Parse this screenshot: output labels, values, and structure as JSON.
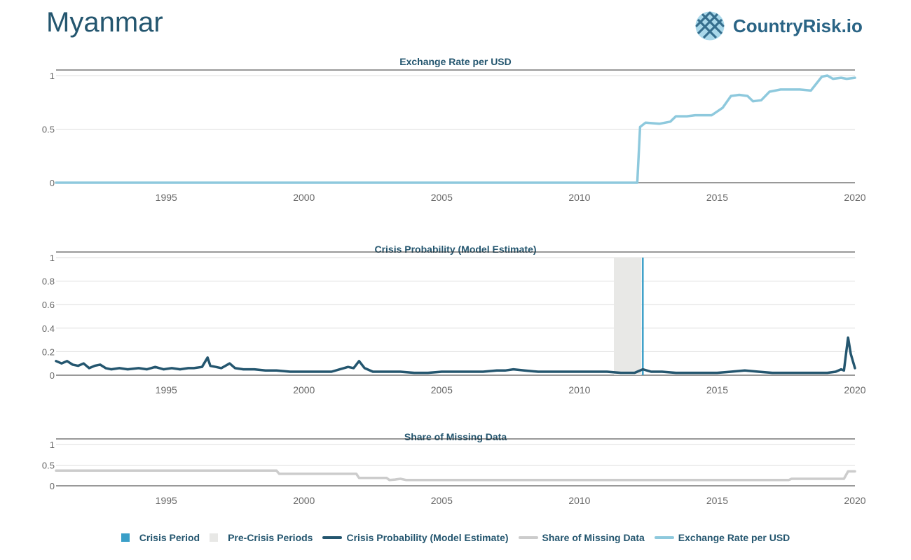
{
  "header": {
    "country": "Myanmar",
    "logo_text": "CountryRisk.io"
  },
  "colors": {
    "crisis": "#3a9fc8",
    "precrisis": "#e8e8e6",
    "probability": "#24566f",
    "missing": "#cccccc",
    "exchange": "#8ec9dd",
    "title": "#24566f",
    "axis": "#666666"
  },
  "legend": {
    "crisis": "Crisis Period",
    "precrisis": "Pre-Crisis Periods",
    "probability": "Crisis Probability (Model Estimate)",
    "missing": "Share of Missing Data",
    "exchange": "Exchange Rate per USD"
  },
  "chart_data": [
    {
      "type": "line",
      "title": "Exchange Rate per USD",
      "xlim": [
        1991,
        2020
      ],
      "xticks": [
        "1995",
        "2000",
        "2005",
        "2010",
        "2015",
        "2020"
      ],
      "ylim": [
        0,
        1
      ],
      "yticks": [
        "0",
        "0.5",
        "1"
      ],
      "series": [
        {
          "name": "Exchange Rate per USD",
          "x": [
            1991,
            2012.1,
            2012.2,
            2012.4,
            2012.9,
            2013.3,
            2013.5,
            2013.9,
            2014.2,
            2014.8,
            2015.2,
            2015.5,
            2015.8,
            2016.1,
            2016.3,
            2016.6,
            2016.9,
            2017.3,
            2018.0,
            2018.4,
            2018.8,
            2019.0,
            2019.2,
            2019.5,
            2019.7,
            2020
          ],
          "y": [
            0.0,
            0.0,
            0.52,
            0.56,
            0.55,
            0.57,
            0.62,
            0.62,
            0.63,
            0.63,
            0.7,
            0.81,
            0.82,
            0.81,
            0.76,
            0.77,
            0.85,
            0.87,
            0.87,
            0.86,
            0.99,
            1.0,
            0.97,
            0.98,
            0.97,
            0.98
          ]
        }
      ]
    },
    {
      "type": "line",
      "title": "Crisis Probability (Model Estimate)",
      "xlim": [
        1991,
        2020
      ],
      "xticks": [
        "1995",
        "2000",
        "2005",
        "2010",
        "2015",
        "2020"
      ],
      "ylim": [
        0,
        1
      ],
      "yticks": [
        "0",
        "0.2",
        "0.4",
        "0.6",
        "0.8",
        "1"
      ],
      "precrisis": [
        [
          2011.25,
          2012.25
        ]
      ],
      "crisis": [
        2012.3
      ],
      "series": [
        {
          "name": "Crisis Probability (Model Estimate)",
          "x": [
            1991,
            1991.2,
            1991.4,
            1991.6,
            1991.8,
            1992.0,
            1992.2,
            1992.4,
            1992.6,
            1992.8,
            1993.0,
            1993.3,
            1993.6,
            1994.0,
            1994.3,
            1994.6,
            1994.9,
            1995.2,
            1995.5,
            1995.8,
            1996.0,
            1996.3,
            1996.5,
            1996.6,
            1996.8,
            1997.0,
            1997.3,
            1997.5,
            1997.8,
            1998.2,
            1998.6,
            1999.0,
            1999.5,
            2000.0,
            2000.5,
            2001.0,
            2001.3,
            2001.6,
            2001.8,
            2002.0,
            2002.2,
            2002.5,
            2003.0,
            2003.5,
            2004.0,
            2004.5,
            2005.0,
            2005.5,
            2006.0,
            2006.5,
            2007.0,
            2007.3,
            2007.6,
            2008.0,
            2008.5,
            2009.0,
            2009.5,
            2010.0,
            2010.5,
            2011.0,
            2011.5,
            2012.0,
            2012.3,
            2012.6,
            2013.0,
            2013.5,
            2014.0,
            2014.5,
            2015.0,
            2015.5,
            2016.0,
            2016.5,
            2017.0,
            2017.5,
            2018.0,
            2018.5,
            2019.0,
            2019.3,
            2019.5,
            2019.6,
            2019.75,
            2019.85,
            2020
          ],
          "y": [
            0.12,
            0.1,
            0.12,
            0.09,
            0.08,
            0.1,
            0.06,
            0.08,
            0.09,
            0.06,
            0.05,
            0.06,
            0.05,
            0.06,
            0.05,
            0.07,
            0.05,
            0.06,
            0.05,
            0.06,
            0.06,
            0.07,
            0.15,
            0.08,
            0.07,
            0.06,
            0.1,
            0.06,
            0.05,
            0.05,
            0.04,
            0.04,
            0.03,
            0.03,
            0.03,
            0.03,
            0.05,
            0.07,
            0.06,
            0.12,
            0.06,
            0.03,
            0.03,
            0.03,
            0.02,
            0.02,
            0.03,
            0.03,
            0.03,
            0.03,
            0.04,
            0.04,
            0.05,
            0.04,
            0.03,
            0.03,
            0.03,
            0.03,
            0.03,
            0.03,
            0.02,
            0.02,
            0.05,
            0.03,
            0.03,
            0.02,
            0.02,
            0.02,
            0.02,
            0.03,
            0.04,
            0.03,
            0.02,
            0.02,
            0.02,
            0.02,
            0.02,
            0.03,
            0.05,
            0.04,
            0.32,
            0.18,
            0.06
          ]
        }
      ]
    },
    {
      "type": "line",
      "title": "Share of Missing Data",
      "xlim": [
        1991,
        2020
      ],
      "xticks": [
        "1995",
        "2000",
        "2005",
        "2010",
        "2015",
        "2020"
      ],
      "ylim": [
        0,
        1
      ],
      "yticks": [
        "0",
        "0.5",
        "1"
      ],
      "series": [
        {
          "name": "Share of Missing Data",
          "x": [
            1991,
            1999.0,
            1999.1,
            2001.9,
            2002.0,
            2003.0,
            2003.1,
            2003.3,
            2003.5,
            2003.7,
            2017.6,
            2017.7,
            2019.6,
            2019.75,
            2020
          ],
          "y": [
            0.37,
            0.37,
            0.29,
            0.29,
            0.19,
            0.19,
            0.14,
            0.15,
            0.17,
            0.14,
            0.14,
            0.17,
            0.17,
            0.35,
            0.35
          ]
        }
      ]
    }
  ]
}
